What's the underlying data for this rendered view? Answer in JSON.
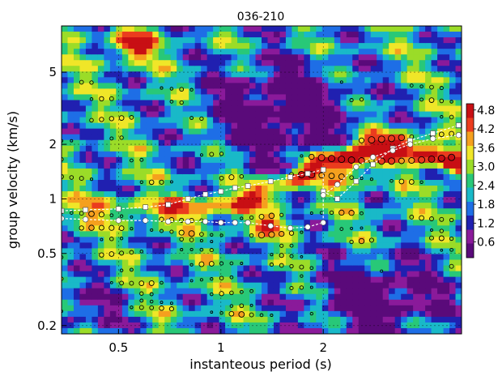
{
  "chart_data": {
    "type": "heatmap",
    "title": "036-210",
    "xlabel": "instanteous period (s)",
    "ylabel": "group velocity (km/s)",
    "x_scale": "log",
    "y_scale": "log",
    "xlim": [
      0.34,
      5.1
    ],
    "ylim": [
      0.18,
      9.0
    ],
    "x_ticks": [
      0.5,
      1,
      2
    ],
    "x_tick_labels": [
      "0.5",
      "1",
      "2"
    ],
    "y_ticks": [
      0.2,
      0.5,
      1,
      2,
      5
    ],
    "y_tick_labels": [
      "0.2",
      "0.5",
      "1",
      "2",
      "5"
    ],
    "grid": true,
    "colorbar": {
      "ticks": [
        0.6,
        1.2,
        1.8,
        2.4,
        3.0,
        3.6,
        4.2,
        4.8
      ],
      "tick_labels": [
        "0.6",
        "1.2",
        "1.8",
        "2.4",
        "3.0",
        "3.6",
        "4.2",
        "4.8"
      ],
      "range": [
        0.1,
        5.0
      ],
      "colors": [
        "#5a0a7a",
        "#8a1a9a",
        "#2020b0",
        "#1e6ee6",
        "#19b9c8",
        "#28c878",
        "#9bdc28",
        "#f0e628",
        "#f5a01e",
        "#eb3c1e",
        "#c80f14"
      ]
    },
    "series": [
      {
        "marker": "square",
        "values": [
          [
            0.34,
            0.86
          ],
          [
            0.4,
            0.87
          ],
          [
            0.5,
            0.88
          ],
          [
            0.6,
            0.9
          ],
          [
            0.7,
            0.93
          ],
          [
            0.8,
            1.0
          ],
          [
            0.9,
            1.06
          ],
          [
            1.0,
            1.1
          ],
          [
            1.1,
            1.15
          ],
          [
            1.2,
            1.18
          ],
          [
            1.4,
            1.25
          ],
          [
            1.6,
            1.32
          ],
          [
            1.8,
            1.38
          ],
          [
            2.0,
            1.45
          ],
          [
            2.0,
            1.1
          ],
          [
            2.2,
            1.0
          ],
          [
            2.5,
            1.25
          ],
          [
            2.8,
            1.55
          ],
          [
            3.2,
            1.9
          ],
          [
            3.6,
            2.1
          ],
          [
            4.2,
            2.3
          ],
          [
            5.0,
            2.55
          ]
        ]
      },
      {
        "marker": "circle",
        "values": [
          [
            0.34,
            0.78
          ],
          [
            0.4,
            0.77
          ],
          [
            0.5,
            0.76
          ],
          [
            0.6,
            0.76
          ],
          [
            0.7,
            0.75
          ],
          [
            0.8,
            0.75
          ],
          [
            0.9,
            0.75
          ],
          [
            1.0,
            0.74
          ],
          [
            1.1,
            0.74
          ],
          [
            1.2,
            0.74
          ],
          [
            1.4,
            0.71
          ],
          [
            1.6,
            0.69
          ],
          [
            1.8,
            0.7
          ],
          [
            2.0,
            0.74
          ],
          [
            2.0,
            1.05
          ],
          [
            2.2,
            1.2
          ],
          [
            2.5,
            1.5
          ],
          [
            2.8,
            1.7
          ],
          [
            3.2,
            1.85
          ],
          [
            3.6,
            2.0
          ],
          [
            4.2,
            2.15
          ],
          [
            5.0,
            2.25
          ]
        ]
      }
    ]
  }
}
